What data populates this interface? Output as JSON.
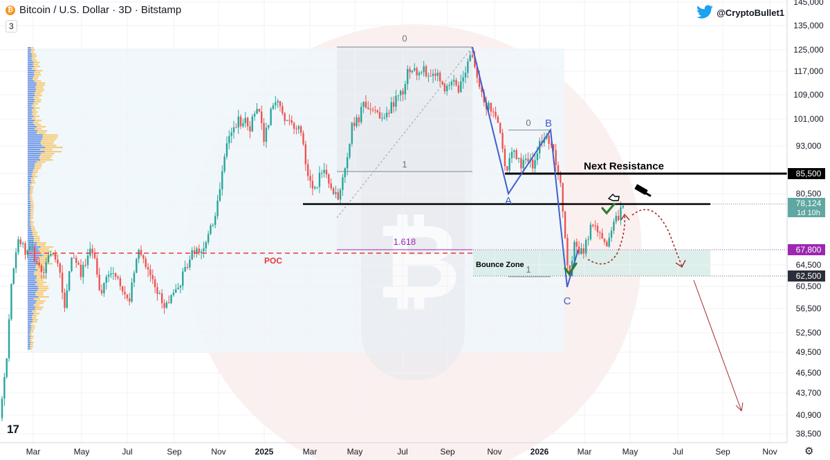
{
  "header": {
    "title": "Bitcoin / U.S. Dollar · 3D · Bitstamp",
    "interval_badge": "3",
    "twitter_handle": "@CryptoBullet1",
    "btc_symbol": "₿"
  },
  "colors": {
    "up": "#26a69a",
    "down": "#ef5350",
    "poc": "#e53935",
    "zone": "#d7ece8",
    "fib_label": "#9c27b0",
    "wave": "#3d5fcc",
    "check": "#2e7d32",
    "projection": "#a52a2a"
  },
  "chart_data": {
    "type": "candlestick",
    "symbol": "BTCUSD",
    "exchange": "Bitstamp",
    "timeframe": "3D",
    "price_scale": {
      "ticks": [
        "145,000",
        "135,000",
        "125,000",
        "117,000",
        "109,000",
        "101,000",
        "93,000",
        "85,500",
        "80,500",
        "78,000",
        "67,800",
        "64,500",
        "62,500",
        "60,500",
        "56,500",
        "52,500",
        "49,500",
        "46,500",
        "43,700",
        "40,900",
        "38,500"
      ],
      "unlabeled_ticks": [
        "72,500"
      ]
    },
    "time_axis": [
      "Mar",
      "May",
      "Jul",
      "Sep",
      "Nov",
      "2025",
      "Mar",
      "May",
      "Jul",
      "Sep",
      "Nov",
      "2026",
      "Mar",
      "May",
      "Jul",
      "Sep",
      "Nov"
    ],
    "price_anchors": [
      {
        "label": "Mar 2024",
        "close": 70000
      },
      {
        "label": "Aug 2024",
        "close": 55000
      },
      {
        "label": "Dec 2024",
        "close": 102000
      },
      {
        "label": "Jan 2025",
        "close": 105000
      },
      {
        "label": "Apr 2025",
        "close": 77000
      },
      {
        "label": "May 2025",
        "close": 105000
      },
      {
        "label": "Jul 2025",
        "close": 119000
      },
      {
        "label": "Oct 2025",
        "close": 124000
      },
      {
        "label": "Nov 2025",
        "close": 84000
      },
      {
        "label": "Jan 2026",
        "close": 95000
      },
      {
        "label": "Feb 2026",
        "close": 62000
      },
      {
        "label": "Mar 2026",
        "close": 70000
      },
      {
        "label": "Apr 2026",
        "close": 78124
      }
    ],
    "levels": [
      {
        "name": "Next Resistance",
        "price": 85500,
        "label": "85,500"
      },
      {
        "name": "support line",
        "price": 78000,
        "label": "78,000"
      },
      {
        "name": "POC",
        "price": 67800,
        "label": "67,800"
      },
      {
        "name": "Bounce Zone bottom",
        "price": 62500,
        "label": "62,500"
      }
    ],
    "current_price": {
      "value": "78,124",
      "countdown": "1d 10h"
    },
    "annotations": {
      "poc": "POC",
      "next_resistance": "Next Resistance",
      "bounce_zone": "Bounce Zone",
      "fib_top_0": "0",
      "fib_top_1": "1",
      "fib_ext": "1.618",
      "fib_small_0": "0",
      "fib_small_1": "1",
      "wave_a": "A",
      "wave_b": "B",
      "wave_c": "C"
    }
  }
}
